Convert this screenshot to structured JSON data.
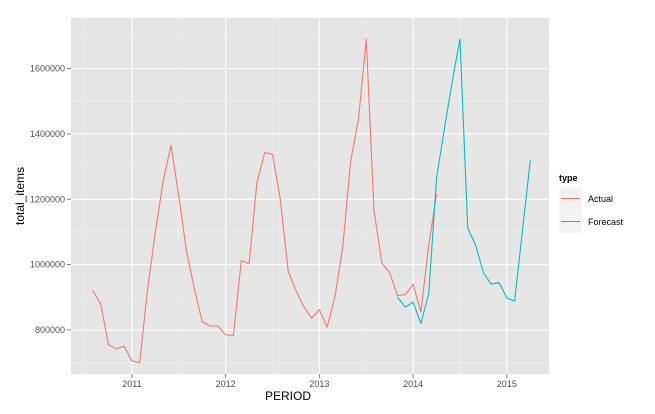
{
  "chart_data": {
    "type": "line",
    "xlabel": "PERIOD",
    "ylabel": "total_items",
    "xlim": [
      2010.35,
      2015.45
    ],
    "ylim": [
      665000,
      1755000
    ],
    "x_ticks": [
      2011,
      2012,
      2013,
      2014,
      2015
    ],
    "x_tick_labels": [
      "2011",
      "2012",
      "2013",
      "2014",
      "2015"
    ],
    "y_ticks": [
      800000,
      1000000,
      1200000,
      1400000,
      1600000
    ],
    "y_tick_labels": [
      "800000",
      "1000000",
      "1200000",
      "1400000",
      "1600000"
    ],
    "grid": true,
    "legend": {
      "title": "type",
      "position": "right",
      "entries": [
        "Actual",
        "Forecast"
      ]
    },
    "series": [
      {
        "name": "Actual",
        "color": "#F8766D",
        "x": [
          2010.583,
          2010.667,
          2010.75,
          2010.833,
          2010.917,
          2011.0,
          2011.083,
          2011.167,
          2011.25,
          2011.333,
          2011.417,
          2011.5,
          2011.583,
          2011.667,
          2011.75,
          2011.833,
          2011.917,
          2012.0,
          2012.083,
          2012.167,
          2012.25,
          2012.333,
          2012.417,
          2012.5,
          2012.583,
          2012.667,
          2012.75,
          2012.833,
          2012.917,
          2013.0,
          2013.083,
          2013.167,
          2013.25,
          2013.333,
          2013.417,
          2013.5,
          2013.583,
          2013.667,
          2013.75,
          2013.833,
          2013.917,
          2014.0,
          2014.083,
          2014.167,
          2014.25
        ],
        "y": [
          920000,
          880000,
          755000,
          742000,
          750000,
          705000,
          700000,
          925000,
          1100000,
          1255000,
          1365000,
          1210000,
          1040000,
          925000,
          825000,
          812000,
          812000,
          785000,
          783000,
          1012000,
          1002000,
          1250000,
          1343000,
          1338000,
          1200000,
          980000,
          920000,
          872000,
          836000,
          862000,
          808000,
          902000,
          1055000,
          1315000,
          1445000,
          1690000,
          1165000,
          1005000,
          975000,
          905000,
          908000,
          940000,
          855000,
          1060000,
          1215000
        ]
      },
      {
        "name": "Forecast",
        "color": "#00BFC4",
        "x": [
          2013.833,
          2013.917,
          2014.0,
          2014.083,
          2014.167,
          2014.25,
          2014.333,
          2014.417,
          2014.5,
          2014.583,
          2014.667,
          2014.75,
          2014.833,
          2014.917,
          2015.0,
          2015.083,
          2015.167,
          2015.25
        ],
        "y": [
          900000,
          870000,
          885000,
          820000,
          910000,
          1265000,
          1415000,
          1560000,
          1690000,
          1112000,
          1060000,
          975000,
          940000,
          945000,
          898000,
          888000,
          1105000,
          1318000
        ]
      }
    ]
  }
}
